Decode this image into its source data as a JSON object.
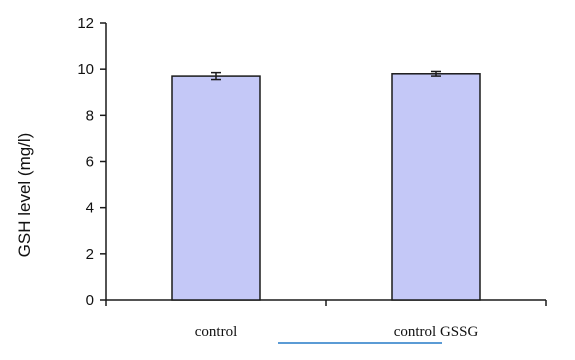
{
  "chart_data": {
    "type": "bar",
    "title": "",
    "xlabel": "",
    "ylabel": "GSH level (mg/l)",
    "ylim": [
      0,
      12
    ],
    "yticks": [
      0,
      2,
      4,
      6,
      8,
      10,
      12
    ],
    "categories": [
      "control",
      "control GSSG"
    ],
    "values": [
      9.7,
      9.8
    ],
    "errors": [
      0.15,
      0.1
    ],
    "grid": false,
    "legend": "none"
  },
  "colors": {
    "bar_fill": "#c4c8f7",
    "bar_stroke": "#1a1a1a",
    "axis": "#1a1a1a",
    "underline": "#5b9bd5"
  }
}
